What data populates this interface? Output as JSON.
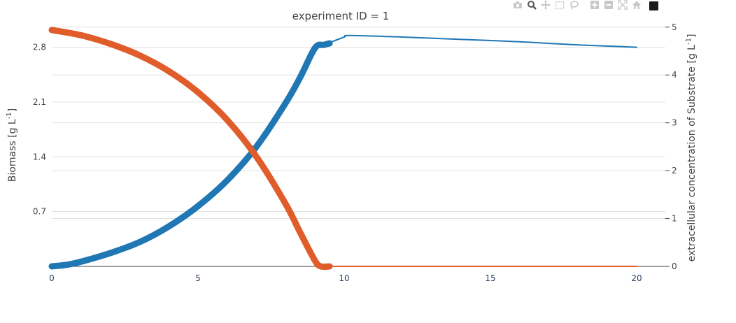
{
  "chart_data": {
    "type": "line",
    "title": "experiment ID = 1",
    "xlim": [
      0,
      21
    ],
    "x_ticks": [
      0,
      5,
      10,
      15,
      20
    ],
    "y_left": {
      "label_main": "Biomass [g L",
      "label_sup": "-1",
      "label_end": "]",
      "lim": [
        0,
        3.1
      ],
      "ticks": [
        0.7,
        1.4,
        2.1,
        2.8
      ],
      "tick_labels": [
        "0.7",
        "1.4",
        "2.1",
        "2.8"
      ]
    },
    "y_right": {
      "label_main": "extracellular concentration of Substrate [g L",
      "label_sup": "-1",
      "label_end": "]",
      "lim": [
        0,
        5.07
      ],
      "ticks": [
        0,
        1,
        2,
        3,
        4,
        5
      ],
      "tick_labels": [
        "0",
        "1",
        "2",
        "3",
        "4",
        "5"
      ]
    },
    "grid": true,
    "legend": "none",
    "series": [
      {
        "axis": "left",
        "color": "#1f77b4",
        "x": [
          0,
          0.5,
          1,
          2,
          3,
          4,
          5,
          6,
          7,
          8,
          8.5,
          9,
          9.3,
          9.5
        ],
        "y": [
          0.0,
          0.02,
          0.06,
          0.17,
          0.31,
          0.51,
          0.77,
          1.1,
          1.53,
          2.09,
          2.42,
          2.79,
          2.83,
          2.85
        ]
      },
      {
        "axis": "left",
        "color": "#1f77b4",
        "x": [
          9.5,
          10,
          10.2,
          12,
          14,
          16,
          18,
          20
        ],
        "y": [
          2.86,
          2.93,
          2.95,
          2.93,
          2.9,
          2.87,
          2.83,
          2.8
        ]
      },
      {
        "axis": "right",
        "color": "#e05c2a",
        "x": [
          0,
          1,
          2,
          3,
          4,
          5,
          6,
          7,
          8,
          8.5,
          9,
          9.2,
          9.5
        ],
        "y": [
          4.94,
          4.83,
          4.65,
          4.41,
          4.08,
          3.64,
          3.06,
          2.29,
          1.3,
          0.7,
          0.12,
          0.0,
          0.0
        ]
      },
      {
        "axis": "right",
        "color": "#e05c2a",
        "x": [
          9.5,
          20
        ],
        "y": [
          0.0,
          0.0
        ]
      }
    ]
  },
  "modebar": {
    "icons": [
      "camera-icon",
      "zoom-icon",
      "pan-icon",
      "box-select-icon",
      "lasso-icon",
      "zoom-in-icon",
      "zoom-out-icon",
      "autoscale-icon",
      "home-icon",
      "plotly-logo-icon"
    ]
  }
}
